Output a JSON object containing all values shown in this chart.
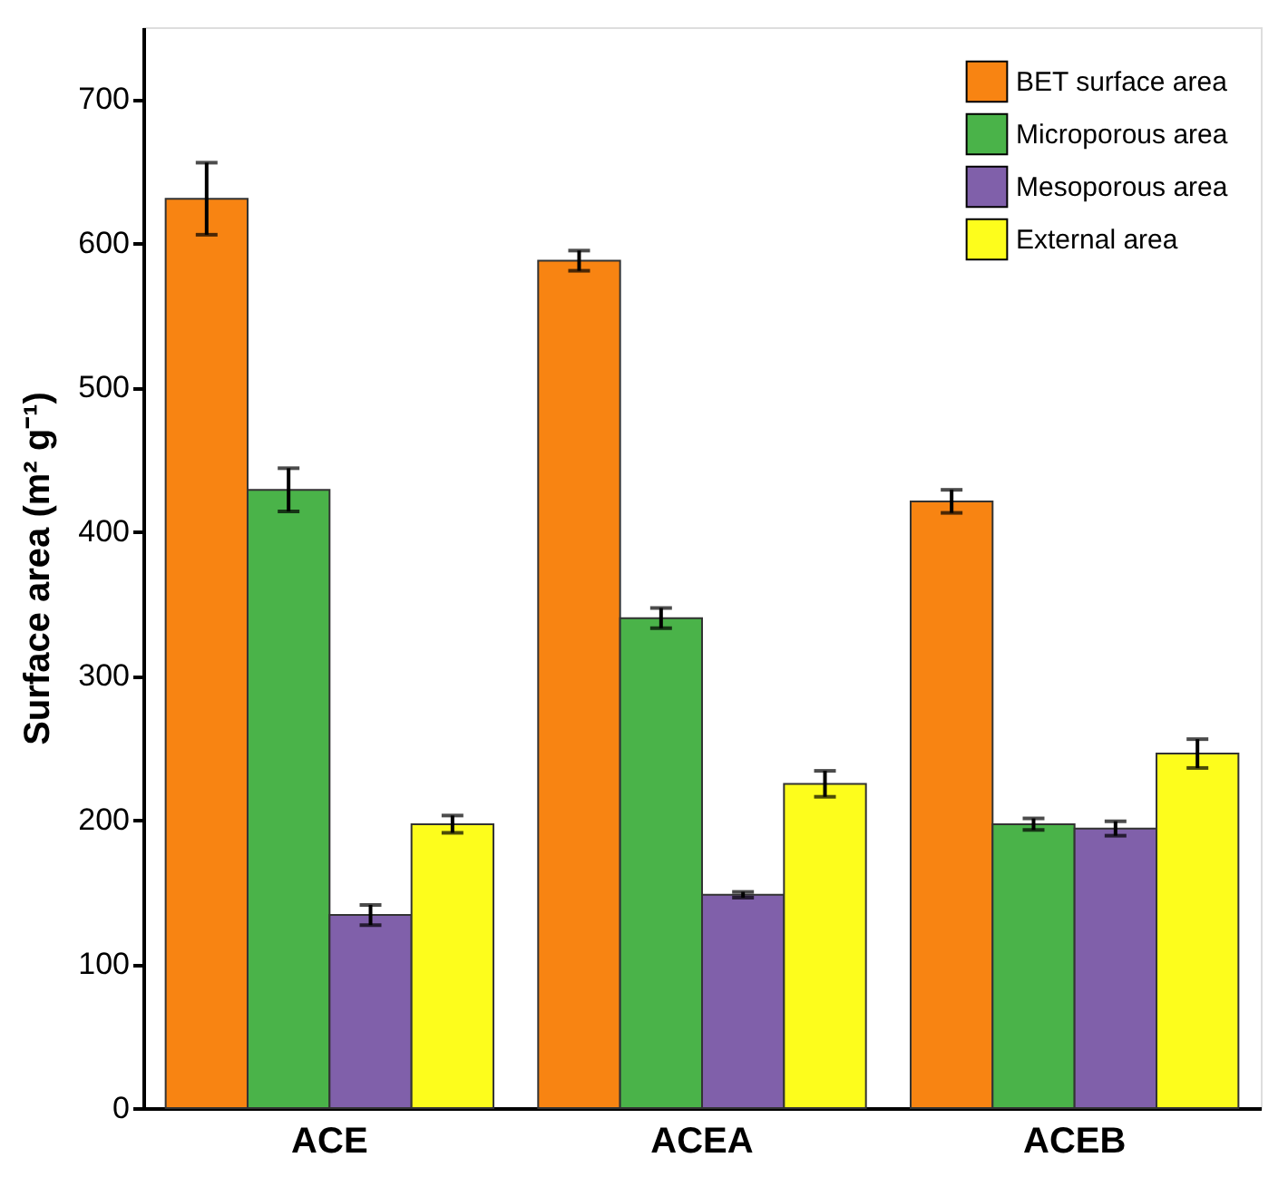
{
  "chart_data": {
    "type": "bar",
    "ylabel": "Surface area (m² g⁻¹)",
    "categories": [
      "ACE",
      "ACEA",
      "ACEB"
    ],
    "series": [
      {
        "name": "BET surface area",
        "color": "#f88412",
        "values": [
          631,
          588,
          421
        ],
        "errors": [
          25,
          7,
          8
        ]
      },
      {
        "name": "Microporous area",
        "color": "#4ab349",
        "values": [
          429,
          340,
          197
        ],
        "errors": [
          15,
          7,
          4
        ]
      },
      {
        "name": "Mesoporous area",
        "color": "#8060aa",
        "values": [
          134,
          148,
          194
        ],
        "errors": [
          7,
          2,
          5
        ]
      },
      {
        "name": "External area",
        "color": "#fdfd1c",
        "values": [
          197,
          225,
          246
        ],
        "errors": [
          6,
          9,
          10
        ]
      }
    ],
    "ylim": [
      0,
      750
    ],
    "yticks": [
      0,
      100,
      200,
      300,
      400,
      500,
      600,
      700
    ],
    "grid": false,
    "legend": "top right"
  }
}
